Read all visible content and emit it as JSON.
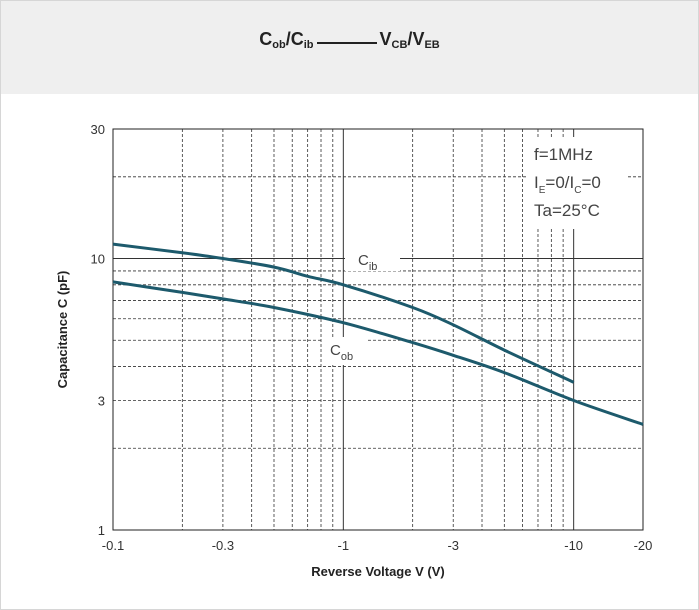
{
  "chart_data": {
    "type": "line",
    "title": {
      "part1_main": "C",
      "part1_sub": "ob",
      "part2_main": "C",
      "part2_sub": "ib",
      "part3_main": "V",
      "part3_sub": "CB",
      "part4_main": "V",
      "part4_sub": "EB"
    },
    "xlabel": "Reverse Voltage  V (V)",
    "ylabel": "Capacitance C (pF)",
    "x_scale": "log",
    "y_scale": "log",
    "xlim": [
      -0.1,
      -20
    ],
    "ylim": [
      1,
      30
    ],
    "x_ticks": [
      {
        "value": -0.1,
        "label": "-0.1"
      },
      {
        "value": -0.3,
        "label": "-0.3"
      },
      {
        "value": -1,
        "label": "-1"
      },
      {
        "value": -3,
        "label": "-3"
      },
      {
        "value": -10,
        "label": "-10"
      },
      {
        "value": -20,
        "label": "-20"
      }
    ],
    "y_ticks": [
      {
        "value": 1,
        "label": "1"
      },
      {
        "value": 3,
        "label": "3"
      },
      {
        "value": 10,
        "label": "10"
      },
      {
        "value": 30,
        "label": "30"
      }
    ],
    "x_minor_grid": [
      -0.2,
      -0.3,
      -0.4,
      -0.5,
      -0.6,
      -0.7,
      -0.8,
      -0.9,
      -2,
      -3,
      -4,
      -5,
      -6,
      -7,
      -8,
      -9
    ],
    "y_minor_grid": [
      2,
      3,
      4,
      5,
      6,
      7,
      8,
      9,
      20
    ],
    "grid": true,
    "conditions": {
      "line1": "f=1MHz",
      "line2_a": "I",
      "line2_a_sub": "E",
      "line2_b": "=0/I",
      "line2_b_sub": "C",
      "line2_c": "=0",
      "line3": "Ta=25°C"
    },
    "series": [
      {
        "label_main": "C",
        "label_sub": "ib",
        "color": "#1d5a6c",
        "x": [
          -0.1,
          -0.2,
          -0.3,
          -0.5,
          -0.7,
          -1,
          -2,
          -3,
          -5,
          -10
        ],
        "y": [
          11.3,
          10.5,
          10.0,
          9.3,
          8.6,
          8.0,
          6.6,
          5.7,
          4.6,
          3.5
        ]
      },
      {
        "label_main": "C",
        "label_sub": "ob",
        "color": "#1d5a6c",
        "x": [
          -0.1,
          -0.2,
          -0.3,
          -0.5,
          -1,
          -2,
          -3,
          -5,
          -10,
          -20
        ],
        "y": [
          8.2,
          7.5,
          7.1,
          6.6,
          5.8,
          4.9,
          4.4,
          3.8,
          3.0,
          2.45
        ]
      }
    ]
  }
}
